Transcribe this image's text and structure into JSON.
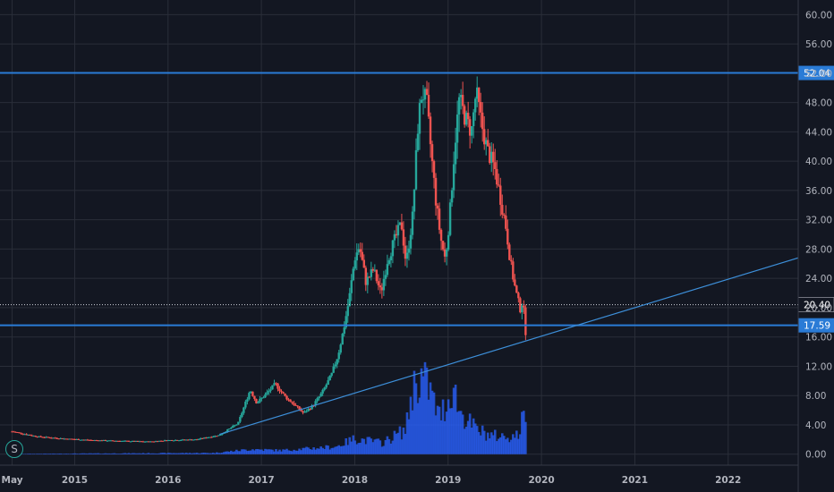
{
  "symbol_badge": "S",
  "chart_data": {
    "type": "candlestick",
    "y_axis": {
      "ticks": [
        "60.00",
        "56.00",
        "52.00",
        "48.00",
        "44.00",
        "40.00",
        "36.00",
        "32.00",
        "28.00",
        "24.00",
        "20.00",
        "16.00",
        "12.00",
        "8.00",
        "4.00",
        "0.00"
      ],
      "tick_values": [
        60,
        56,
        52,
        48,
        44,
        40,
        36,
        32,
        28,
        24,
        20,
        16,
        12,
        8,
        4,
        0
      ],
      "ylim": [
        -1.5,
        62
      ]
    },
    "x_axis": {
      "ticks": [
        "May",
        "2015",
        "2016",
        "2017",
        "2018",
        "2019",
        "2020",
        "2021",
        "2022"
      ],
      "tick_years": [
        2014.33,
        2015,
        2016,
        2017,
        2018,
        2019,
        2020,
        2021,
        2022
      ],
      "xlim": [
        2014.2,
        2022.75
      ]
    },
    "last_price": "20.40",
    "last_price_value": 20.4,
    "horizontal_levels": [
      {
        "label": "52.04",
        "value": 52.04
      },
      {
        "label": "17.59",
        "value": 17.59
      }
    ],
    "trendline": {
      "from": {
        "date": 2016.55,
        "price": 2.7
      },
      "to": {
        "date": 2022.75,
        "price": 26.8
      }
    },
    "candle_colors": {
      "up": "#26a69a",
      "down": "#ef5350",
      "volume": "#2962ff",
      "level": "#2a7bd6"
    },
    "price_path": [
      [
        2014.33,
        3.1
      ],
      [
        2014.6,
        2.4
      ],
      [
        2014.9,
        2.1
      ],
      [
        2015.2,
        1.9
      ],
      [
        2015.5,
        1.8
      ],
      [
        2015.8,
        1.7
      ],
      [
        2016.0,
        1.9
      ],
      [
        2016.3,
        2.0
      ],
      [
        2016.55,
        2.6
      ],
      [
        2016.75,
        4.2
      ],
      [
        2016.88,
        8.8
      ],
      [
        2016.95,
        7.0
      ],
      [
        2017.05,
        8.2
      ],
      [
        2017.15,
        9.6
      ],
      [
        2017.25,
        7.9
      ],
      [
        2017.35,
        6.8
      ],
      [
        2017.45,
        5.6
      ],
      [
        2017.55,
        6.6
      ],
      [
        2017.65,
        8.4
      ],
      [
        2017.75,
        10.8
      ],
      [
        2017.82,
        13.5
      ],
      [
        2017.88,
        17.0
      ],
      [
        2017.94,
        21.2
      ],
      [
        2018.0,
        26.8
      ],
      [
        2018.05,
        28.4
      ],
      [
        2018.12,
        23.5
      ],
      [
        2018.2,
        25.2
      ],
      [
        2018.28,
        22.0
      ],
      [
        2018.35,
        26.5
      ],
      [
        2018.42,
        29.0
      ],
      [
        2018.5,
        31.5
      ],
      [
        2018.55,
        26.0
      ],
      [
        2018.62,
        32.5
      ],
      [
        2018.68,
        45.5
      ],
      [
        2018.72,
        49.5
      ],
      [
        2018.77,
        48.0
      ],
      [
        2018.82,
        41.0
      ],
      [
        2018.87,
        34.5
      ],
      [
        2018.92,
        29.5
      ],
      [
        2018.97,
        26.5
      ],
      [
        2019.02,
        33.0
      ],
      [
        2019.07,
        42.0
      ],
      [
        2019.12,
        48.5
      ],
      [
        2019.18,
        46.0
      ],
      [
        2019.25,
        44.0
      ],
      [
        2019.3,
        49.5
      ],
      [
        2019.36,
        45.0
      ],
      [
        2019.42,
        41.5
      ],
      [
        2019.5,
        39.0
      ],
      [
        2019.56,
        35.0
      ],
      [
        2019.62,
        31.0
      ],
      [
        2019.67,
        26.0
      ],
      [
        2019.72,
        22.5
      ],
      [
        2019.77,
        19.8
      ],
      [
        2019.8,
        21.0
      ],
      [
        2019.84,
        15.3
      ]
    ],
    "volume_path": [
      [
        2014.33,
        0.05
      ],
      [
        2016.5,
        0.2
      ],
      [
        2016.9,
        0.8
      ],
      [
        2017.2,
        0.6
      ],
      [
        2017.8,
        1.2
      ],
      [
        2018.0,
        2.5
      ],
      [
        2018.3,
        1.8
      ],
      [
        2018.55,
        4.0
      ],
      [
        2018.6,
        9.0
      ],
      [
        2018.65,
        11.6
      ],
      [
        2018.72,
        12.3
      ],
      [
        2018.8,
        10.5
      ],
      [
        2018.9,
        6.0
      ],
      [
        2019.0,
        8.5
      ],
      [
        2019.05,
        11.2
      ],
      [
        2019.12,
        7.0
      ],
      [
        2019.2,
        5.5
      ],
      [
        2019.3,
        4.0
      ],
      [
        2019.45,
        3.0
      ],
      [
        2019.6,
        2.8
      ],
      [
        2019.75,
        3.0
      ],
      [
        2019.82,
        6.6
      ]
    ]
  }
}
